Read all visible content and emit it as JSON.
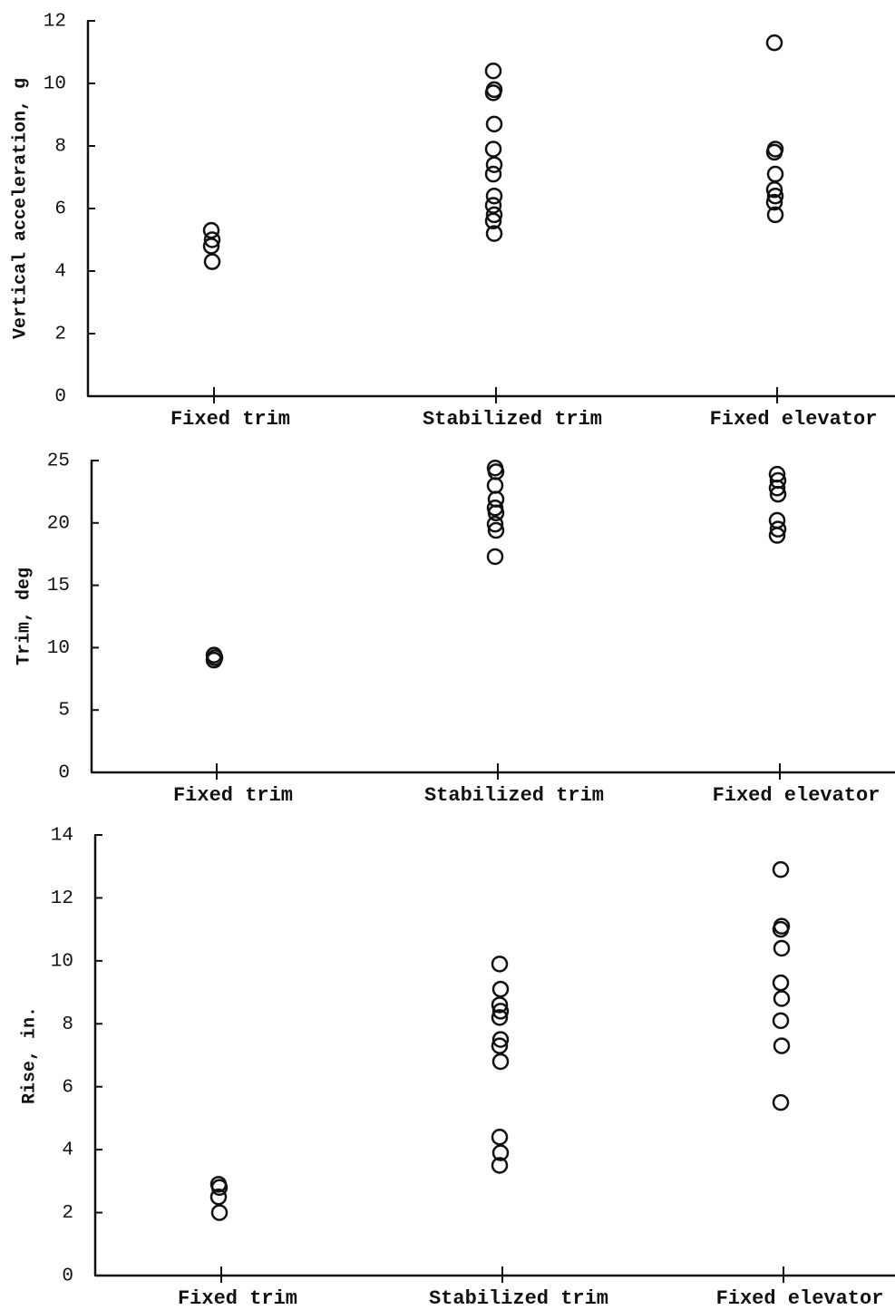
{
  "chart_data": [
    {
      "type": "strip",
      "y_label": "Vertical acceleration, g",
      "groups": [
        {
          "category": "Fixed trim",
          "values": [
            5.3,
            5.0,
            4.8,
            4.3
          ]
        },
        {
          "category": "Stabilized trim",
          "values": [
            10.4,
            9.8,
            9.7,
            8.7,
            7.9,
            7.4,
            7.1,
            6.4,
            6.1,
            5.8,
            5.6,
            5.2
          ]
        },
        {
          "category": "Fixed elevator",
          "values": [
            11.3,
            7.9,
            7.8,
            7.1,
            6.6,
            6.4,
            6.2,
            5.8
          ]
        }
      ],
      "ylim": [
        0,
        12
      ],
      "yticks": [
        0,
        2,
        4,
        6,
        8,
        10,
        12
      ],
      "color": "#111111"
    },
    {
      "type": "strip",
      "y_label": "Trim, deg",
      "groups": [
        {
          "category": "Fixed trim",
          "values": [
            9.4,
            9.2,
            9.0
          ]
        },
        {
          "category": "Stabilized trim",
          "values": [
            24.4,
            24.1,
            23.0,
            21.9,
            21.2,
            20.8,
            19.9,
            19.4,
            17.3
          ]
        },
        {
          "category": "Fixed elevator",
          "values": [
            23.9,
            23.4,
            22.8,
            22.3,
            20.2,
            19.5,
            19.0
          ]
        }
      ],
      "ylim": [
        0,
        25
      ],
      "yticks": [
        0,
        5,
        10,
        15,
        20,
        25
      ],
      "color": "#111111"
    },
    {
      "type": "strip",
      "y_label": "Rise, in.",
      "groups": [
        {
          "category": "Fixed trim",
          "values": [
            2.9,
            2.8,
            2.5,
            2.0
          ]
        },
        {
          "category": "Stabilized trim",
          "values": [
            9.9,
            9.1,
            8.6,
            8.4,
            8.2,
            7.5,
            7.3,
            6.8,
            4.4,
            3.9,
            3.5
          ]
        },
        {
          "category": "Fixed elevator",
          "values": [
            12.9,
            11.1,
            11.0,
            10.4,
            9.3,
            8.8,
            8.1,
            7.3,
            5.5
          ]
        }
      ],
      "ylim": [
        0,
        14
      ],
      "yticks": [
        0,
        2,
        4,
        6,
        8,
        10,
        12,
        14
      ],
      "color": "#111111"
    }
  ]
}
